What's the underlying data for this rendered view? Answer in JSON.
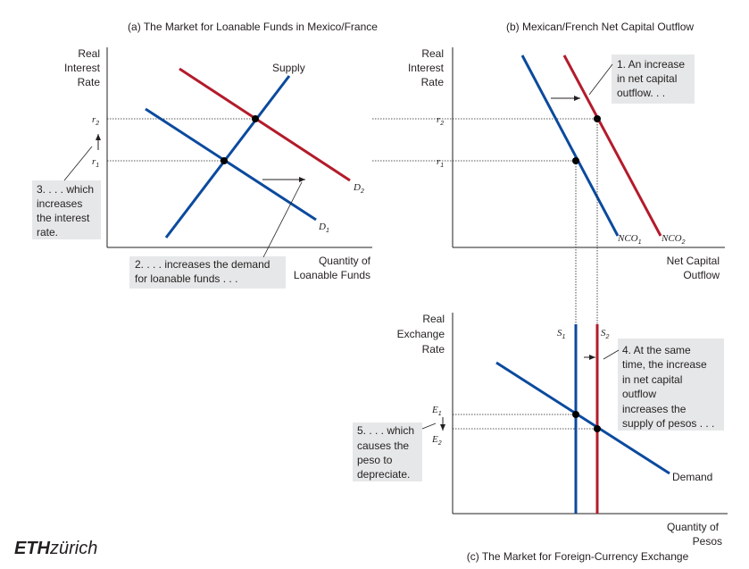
{
  "panel_a": {
    "title": "(a) The Market for Loanable Funds in Mexico/France",
    "y_label": [
      "Real",
      "Interest",
      "Rate"
    ],
    "x_label": [
      "Quantity of",
      "Loanable Funds"
    ],
    "supply_label": "Supply",
    "r1": "r",
    "r2": "r",
    "d1": "D",
    "d2": "D",
    "callout_2": [
      "2. . . . increases the demand",
      "for loanable funds . . ."
    ],
    "callout_3": [
      "3. . . . which",
      "increases",
      "the interest",
      "rate."
    ]
  },
  "panel_b": {
    "title": "(b) Mexican/French Net Capital Outflow",
    "y_label": [
      "Real",
      "Interest",
      "Rate"
    ],
    "x_label": [
      "Net Capital",
      "Outflow"
    ],
    "r1": "r",
    "r2": "r",
    "nco1": "NCO",
    "nco2": "NCO",
    "callout_1": [
      "1. An increase",
      "in net capital",
      "outflow. . ."
    ]
  },
  "panel_c": {
    "title": "(c) The Market for Foreign-Currency Exchange",
    "y_label": [
      "Real",
      "Exchange",
      "Rate"
    ],
    "x_label": [
      "Quantity of",
      "Pesos"
    ],
    "s1": "S",
    "s2": "S",
    "e1": "E",
    "e2": "E",
    "demand_label": "Demand",
    "callout_4": [
      "4. At the same",
      "time, the increase",
      "in net capital",
      "outflow",
      "increases the",
      "supply of pesos . . ."
    ],
    "callout_5": [
      "5. . . . which",
      "causes the",
      "peso to",
      "depreciate."
    ]
  },
  "logo": {
    "bold": "ETH",
    "rest": "zürich"
  },
  "colors": {
    "blue": "#0b4a9e",
    "red": "#b31b2b",
    "box": "#e6e7e8"
  }
}
